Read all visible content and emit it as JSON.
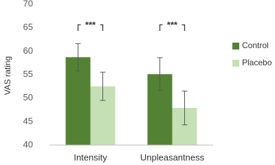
{
  "chart_data": {
    "type": "bar",
    "ylabel": "VAS rating",
    "categories": [
      "Intensity",
      "Unpleasantness"
    ],
    "series": [
      {
        "name": "Control",
        "color": "#548235",
        "values": [
          58.7,
          55.1
        ],
        "errors": [
          2.9,
          3.5
        ]
      },
      {
        "name": "Placebo",
        "color": "#c5e0b4",
        "values": [
          52.5,
          47.9
        ],
        "errors": [
          3.0,
          3.6
        ]
      }
    ],
    "annotations": [
      "***",
      "***"
    ],
    "ylim": [
      40,
      70
    ],
    "yticks": [
      40,
      45,
      50,
      55,
      60,
      65,
      70
    ],
    "grid": false,
    "legend": "right"
  }
}
